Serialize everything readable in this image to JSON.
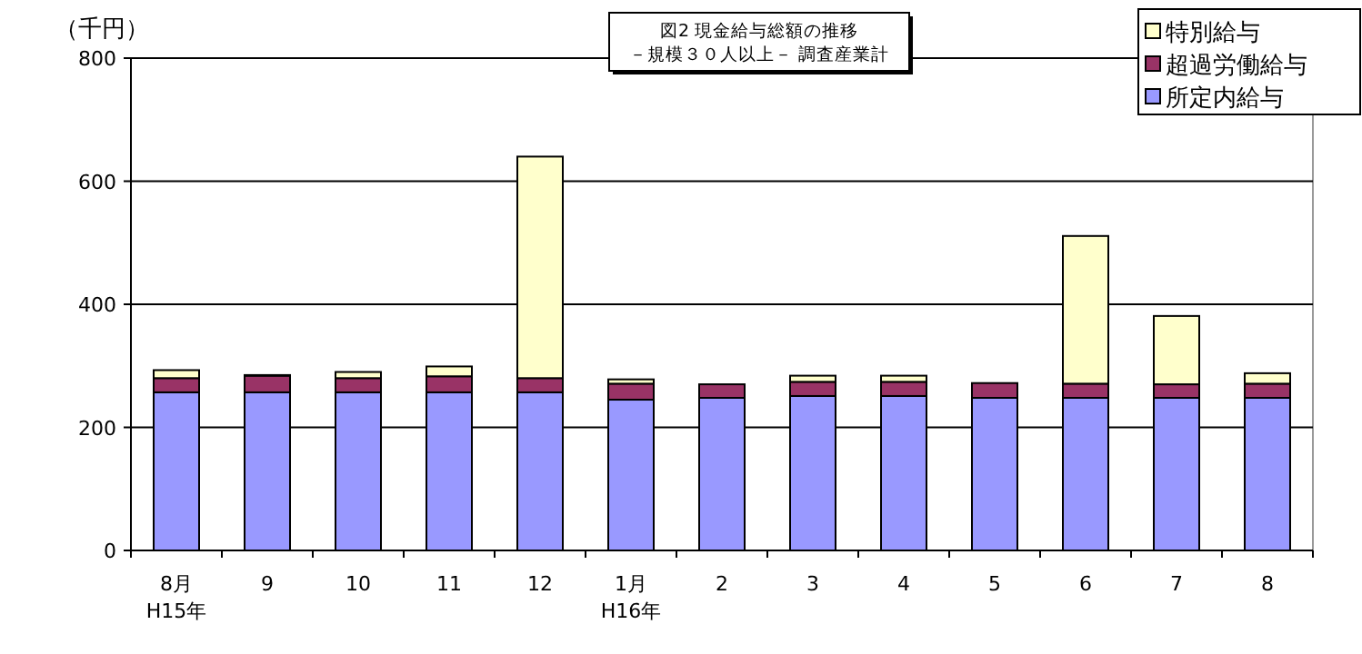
{
  "chart_data": {
    "type": "bar",
    "stacked": true,
    "title": "図2 現金給与総額の推移",
    "subtitle": "－規模３０人以上－ 調査産業計",
    "ylabel": "（千円）",
    "categories": [
      "8月\nH15年",
      "9",
      "10",
      "11",
      "12",
      "1月\nH16年",
      "2",
      "3",
      "4",
      "5",
      "6",
      "7",
      "8"
    ],
    "series": [
      {
        "name": "所定内給与",
        "color": "#9999ff",
        "values": [
          257,
          257,
          257,
          257,
          257,
          245,
          248,
          251,
          251,
          248,
          248,
          248,
          248
        ]
      },
      {
        "name": "超過労働給与",
        "color": "#993366",
        "values": [
          23,
          27,
          23,
          26,
          23,
          26,
          22,
          23,
          23,
          24,
          23,
          22,
          23
        ]
      },
      {
        "name": "特別給与",
        "color": "#ffffcc",
        "values": [
          13,
          1,
          10,
          16,
          360,
          7,
          0,
          10,
          10,
          null,
          240,
          111,
          17
        ]
      }
    ],
    "ylim": [
      0,
      800
    ],
    "yticks": [
      0,
      200,
      400,
      600,
      800
    ],
    "grid": "y",
    "legend": "top right"
  }
}
